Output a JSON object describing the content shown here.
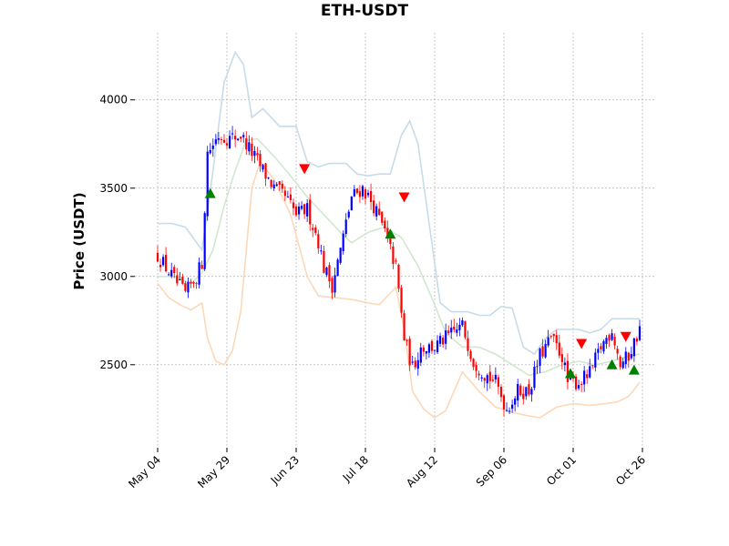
{
  "chart_data": {
    "type": "candlestick",
    "title": "ETH-USDT",
    "xlabel": "",
    "ylabel": "Price (USDT)",
    "ylim": [
      2030,
      4380
    ],
    "y_ticks": [
      2500,
      3000,
      3500,
      4000
    ],
    "x_ticks": [
      "May 04",
      "May 29",
      "Jun 23",
      "Jul 18",
      "Aug 12",
      "Sep 06",
      "Oct 01",
      "Oct 26"
    ],
    "grid": true,
    "colors": {
      "up": "#0000ff",
      "down": "#ff0000",
      "upper_band": "#c6dcea",
      "middle_band": "#cfe8cf",
      "lower_band": "#fdd8b8",
      "buy_marker": "#008000",
      "sell_marker": "#ff0000"
    },
    "close_anchors": [
      {
        "day": 0,
        "close": 3120
      },
      {
        "day": 3,
        "close": 3050
      },
      {
        "day": 6,
        "close": 2980
      },
      {
        "day": 10,
        "close": 2900
      },
      {
        "day": 14,
        "close": 3000
      },
      {
        "day": 16,
        "close": 3080
      },
      {
        "day": 18,
        "close": 3700
      },
      {
        "day": 22,
        "close": 3800
      },
      {
        "day": 26,
        "close": 3780
      },
      {
        "day": 30,
        "close": 3800
      },
      {
        "day": 34,
        "close": 3700
      },
      {
        "day": 38,
        "close": 3600
      },
      {
        "day": 42,
        "close": 3500
      },
      {
        "day": 46,
        "close": 3450
      },
      {
        "day": 50,
        "close": 3350
      },
      {
        "day": 54,
        "close": 3380
      },
      {
        "day": 58,
        "close": 3200
      },
      {
        "day": 60,
        "close": 3050
      },
      {
        "day": 63,
        "close": 2950
      },
      {
        "day": 66,
        "close": 3150
      },
      {
        "day": 70,
        "close": 3450
      },
      {
        "day": 74,
        "close": 3500
      },
      {
        "day": 78,
        "close": 3400
      },
      {
        "day": 82,
        "close": 3250
      },
      {
        "day": 86,
        "close": 3050
      },
      {
        "day": 89,
        "close": 2650
      },
      {
        "day": 92,
        "close": 2480
      },
      {
        "day": 95,
        "close": 2600
      },
      {
        "day": 100,
        "close": 2600
      },
      {
        "day": 104,
        "close": 2650
      },
      {
        "day": 110,
        "close": 2720
      },
      {
        "day": 114,
        "close": 2520
      },
      {
        "day": 118,
        "close": 2450
      },
      {
        "day": 122,
        "close": 2400
      },
      {
        "day": 126,
        "close": 2250
      },
      {
        "day": 130,
        "close": 2350
      },
      {
        "day": 134,
        "close": 2350
      },
      {
        "day": 138,
        "close": 2550
      },
      {
        "day": 142,
        "close": 2650
      },
      {
        "day": 146,
        "close": 2550
      },
      {
        "day": 148,
        "close": 2400
      },
      {
        "day": 152,
        "close": 2400
      },
      {
        "day": 156,
        "close": 2450
      },
      {
        "day": 160,
        "close": 2600
      },
      {
        "day": 164,
        "close": 2700
      },
      {
        "day": 167,
        "close": 2500
      },
      {
        "day": 170,
        "close": 2550
      },
      {
        "day": 174,
        "close": 2700
      }
    ],
    "upper_band": [
      {
        "day": 0,
        "value": 3300
      },
      {
        "day": 5,
        "value": 3300
      },
      {
        "day": 10,
        "value": 3280
      },
      {
        "day": 16,
        "value": 3150
      },
      {
        "day": 20,
        "value": 3600
      },
      {
        "day": 24,
        "value": 4100
      },
      {
        "day": 28,
        "value": 4270
      },
      {
        "day": 31,
        "value": 4200
      },
      {
        "day": 34,
        "value": 3900
      },
      {
        "day": 38,
        "value": 3950
      },
      {
        "day": 44,
        "value": 3850
      },
      {
        "day": 50,
        "value": 3850
      },
      {
        "day": 54,
        "value": 3650
      },
      {
        "day": 58,
        "value": 3620
      },
      {
        "day": 62,
        "value": 3640
      },
      {
        "day": 68,
        "value": 3640
      },
      {
        "day": 72,
        "value": 3580
      },
      {
        "day": 76,
        "value": 3570
      },
      {
        "day": 80,
        "value": 3580
      },
      {
        "day": 84,
        "value": 3580
      },
      {
        "day": 88,
        "value": 3800
      },
      {
        "day": 91,
        "value": 3880
      },
      {
        "day": 94,
        "value": 3750
      },
      {
        "day": 98,
        "value": 3300
      },
      {
        "day": 102,
        "value": 2850
      },
      {
        "day": 106,
        "value": 2800
      },
      {
        "day": 112,
        "value": 2800
      },
      {
        "day": 116,
        "value": 2780
      },
      {
        "day": 120,
        "value": 2780
      },
      {
        "day": 124,
        "value": 2830
      },
      {
        "day": 128,
        "value": 2820
      },
      {
        "day": 132,
        "value": 2600
      },
      {
        "day": 136,
        "value": 2560
      },
      {
        "day": 140,
        "value": 2650
      },
      {
        "day": 144,
        "value": 2700
      },
      {
        "day": 148,
        "value": 2700
      },
      {
        "day": 152,
        "value": 2700
      },
      {
        "day": 156,
        "value": 2680
      },
      {
        "day": 160,
        "value": 2700
      },
      {
        "day": 164,
        "value": 2760
      },
      {
        "day": 170,
        "value": 2760
      },
      {
        "day": 174,
        "value": 2760
      }
    ],
    "middle_band": [
      {
        "day": 0,
        "value": 3000
      },
      {
        "day": 6,
        "value": 3000
      },
      {
        "day": 12,
        "value": 2960
      },
      {
        "day": 16,
        "value": 3020
      },
      {
        "day": 20,
        "value": 3150
      },
      {
        "day": 24,
        "value": 3400
      },
      {
        "day": 28,
        "value": 3600
      },
      {
        "day": 32,
        "value": 3770
      },
      {
        "day": 36,
        "value": 3780
      },
      {
        "day": 42,
        "value": 3680
      },
      {
        "day": 48,
        "value": 3570
      },
      {
        "day": 54,
        "value": 3450
      },
      {
        "day": 60,
        "value": 3350
      },
      {
        "day": 66,
        "value": 3250
      },
      {
        "day": 70,
        "value": 3190
      },
      {
        "day": 76,
        "value": 3250
      },
      {
        "day": 82,
        "value": 3280
      },
      {
        "day": 88,
        "value": 3220
      },
      {
        "day": 94,
        "value": 3060
      },
      {
        "day": 100,
        "value": 2840
      },
      {
        "day": 104,
        "value": 2680
      },
      {
        "day": 110,
        "value": 2600
      },
      {
        "day": 116,
        "value": 2600
      },
      {
        "day": 122,
        "value": 2560
      },
      {
        "day": 128,
        "value": 2500
      },
      {
        "day": 134,
        "value": 2440
      },
      {
        "day": 140,
        "value": 2460
      },
      {
        "day": 146,
        "value": 2500
      },
      {
        "day": 152,
        "value": 2520
      },
      {
        "day": 158,
        "value": 2500
      },
      {
        "day": 164,
        "value": 2520
      },
      {
        "day": 170,
        "value": 2550
      },
      {
        "day": 174,
        "value": 2560
      }
    ],
    "lower_band": [
      {
        "day": 0,
        "value": 2960
      },
      {
        "day": 4,
        "value": 2880
      },
      {
        "day": 8,
        "value": 2840
      },
      {
        "day": 12,
        "value": 2810
      },
      {
        "day": 16,
        "value": 2850
      },
      {
        "day": 18,
        "value": 2650
      },
      {
        "day": 21,
        "value": 2520
      },
      {
        "day": 24,
        "value": 2500
      },
      {
        "day": 27,
        "value": 2580
      },
      {
        "day": 30,
        "value": 2800
      },
      {
        "day": 32,
        "value": 3150
      },
      {
        "day": 34,
        "value": 3500
      },
      {
        "day": 37,
        "value": 3650
      },
      {
        "day": 42,
        "value": 3550
      },
      {
        "day": 48,
        "value": 3350
      },
      {
        "day": 54,
        "value": 3000
      },
      {
        "day": 58,
        "value": 2890
      },
      {
        "day": 64,
        "value": 2880
      },
      {
        "day": 70,
        "value": 2870
      },
      {
        "day": 76,
        "value": 2850
      },
      {
        "day": 80,
        "value": 2840
      },
      {
        "day": 86,
        "value": 2940
      },
      {
        "day": 89,
        "value": 2700
      },
      {
        "day": 92,
        "value": 2350
      },
      {
        "day": 96,
        "value": 2250
      },
      {
        "day": 100,
        "value": 2200
      },
      {
        "day": 104,
        "value": 2240
      },
      {
        "day": 110,
        "value": 2460
      },
      {
        "day": 116,
        "value": 2350
      },
      {
        "day": 122,
        "value": 2260
      },
      {
        "day": 128,
        "value": 2230
      },
      {
        "day": 134,
        "value": 2210
      },
      {
        "day": 138,
        "value": 2200
      },
      {
        "day": 144,
        "value": 2260
      },
      {
        "day": 150,
        "value": 2280
      },
      {
        "day": 156,
        "value": 2270
      },
      {
        "day": 162,
        "value": 2280
      },
      {
        "day": 166,
        "value": 2290
      },
      {
        "day": 170,
        "value": 2320
      },
      {
        "day": 174,
        "value": 2400
      }
    ],
    "buy_signals": [
      {
        "day": 19,
        "value": 3470
      },
      {
        "day": 84,
        "value": 3240
      },
      {
        "day": 149,
        "value": 2450
      },
      {
        "day": 164,
        "value": 2500
      },
      {
        "day": 172,
        "value": 2470
      }
    ],
    "sell_signals": [
      {
        "day": 53,
        "value": 3610
      },
      {
        "day": 89,
        "value": 3450
      },
      {
        "day": 153,
        "value": 2620
      },
      {
        "day": 169,
        "value": 2660
      }
    ]
  }
}
